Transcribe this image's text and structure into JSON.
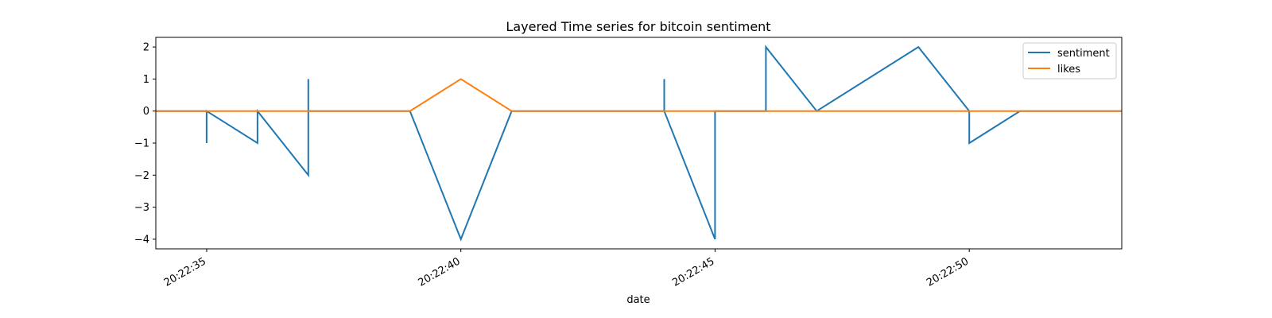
{
  "chart_data": {
    "type": "line",
    "title": "Layered Time series for bitcoin sentiment",
    "xlabel": "date",
    "ylabel": "",
    "xlim": [
      "20:22:34",
      "20:22:53"
    ],
    "ylim": [
      -4.3,
      2.3
    ],
    "x_ticks": [
      "20:22:35",
      "20:22:40",
      "20:22:45",
      "20:22:50"
    ],
    "y_ticks": [
      2,
      1,
      0,
      -1,
      -2,
      -3,
      -4
    ],
    "legend_position": "top-right",
    "grid": false,
    "series": [
      {
        "name": "sentiment",
        "color": "#1f77b4",
        "points": [
          [
            "20:22:34",
            0
          ],
          [
            "20:22:35",
            0
          ],
          [
            "20:22:35",
            -1
          ],
          [
            "20:22:35",
            0
          ],
          [
            "20:22:36",
            -1
          ],
          [
            "20:22:36",
            0
          ],
          [
            "20:22:37",
            -2
          ],
          [
            "20:22:37",
            1
          ],
          [
            "20:22:37",
            0
          ],
          [
            "20:22:39",
            0
          ],
          [
            "20:22:40",
            -4
          ],
          [
            "20:22:41",
            0
          ],
          [
            "20:22:44",
            0
          ],
          [
            "20:22:44",
            1
          ],
          [
            "20:22:44",
            0
          ],
          [
            "20:22:45",
            -4
          ],
          [
            "20:22:45",
            0
          ],
          [
            "20:22:46",
            0
          ],
          [
            "20:22:46",
            2
          ],
          [
            "20:22:47",
            0
          ],
          [
            "20:22:49",
            2
          ],
          [
            "20:22:50",
            0
          ],
          [
            "20:22:50",
            -1
          ],
          [
            "20:22:51",
            0
          ],
          [
            "20:22:53",
            0
          ]
        ]
      },
      {
        "name": "likes",
        "color": "#ff7f0e",
        "points": [
          [
            "20:22:34",
            0
          ],
          [
            "20:22:39",
            0
          ],
          [
            "20:22:40",
            1
          ],
          [
            "20:22:41",
            0
          ],
          [
            "20:22:53",
            0
          ]
        ]
      }
    ]
  }
}
